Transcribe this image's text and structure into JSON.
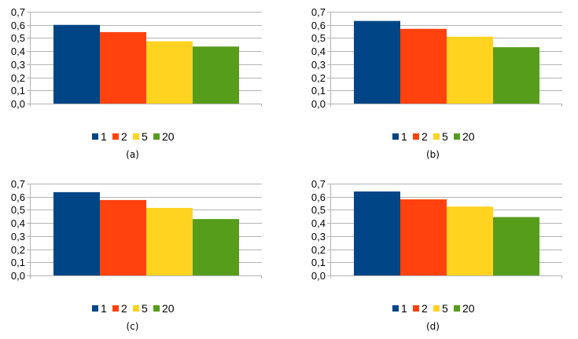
{
  "colors": {
    "series": [
      "#004586",
      "#ff420e",
      "#ffd320",
      "#579d1c"
    ],
    "grid": "#b3b3b3",
    "axis": "#b3b3b3"
  },
  "chart_data": [
    {
      "type": "bar",
      "caption": "(a)",
      "categories": [
        ""
      ],
      "series": [
        {
          "name": "1",
          "values": [
            0.6
          ]
        },
        {
          "name": "2",
          "values": [
            0.545
          ]
        },
        {
          "name": "5",
          "values": [
            0.475
          ]
        },
        {
          "name": "20",
          "values": [
            0.435
          ]
        }
      ],
      "ylim": [
        0,
        0.7
      ],
      "yticks": [
        "0,0",
        "0,1",
        "0,2",
        "0,3",
        "0,4",
        "0,5",
        "0,6",
        "0,7"
      ],
      "grid": true,
      "legend": "bottom"
    },
    {
      "type": "bar",
      "caption": "(b)",
      "categories": [
        ""
      ],
      "series": [
        {
          "name": "1",
          "values": [
            0.63
          ]
        },
        {
          "name": "2",
          "values": [
            0.57
          ]
        },
        {
          "name": "5",
          "values": [
            0.51
          ]
        },
        {
          "name": "20",
          "values": [
            0.43
          ]
        }
      ],
      "ylim": [
        0,
        0.7
      ],
      "yticks": [
        "0,0",
        "0,1",
        "0,2",
        "0,3",
        "0,4",
        "0,5",
        "0,6",
        "0,7"
      ],
      "grid": true,
      "legend": "bottom"
    },
    {
      "type": "bar",
      "caption": "(c)",
      "categories": [
        ""
      ],
      "series": [
        {
          "name": "1",
          "values": [
            0.635
          ]
        },
        {
          "name": "2",
          "values": [
            0.575
          ]
        },
        {
          "name": "5",
          "values": [
            0.515
          ]
        },
        {
          "name": "20",
          "values": [
            0.43
          ]
        }
      ],
      "ylim": [
        0,
        0.7
      ],
      "yticks": [
        "0,0",
        "0,1",
        "0,2",
        "0,3",
        "0,4",
        "0,5",
        "0,6",
        "0,7"
      ],
      "grid": true,
      "legend": "bottom"
    },
    {
      "type": "bar",
      "caption": "(d)",
      "categories": [
        ""
      ],
      "series": [
        {
          "name": "1",
          "values": [
            0.64
          ]
        },
        {
          "name": "2",
          "values": [
            0.58
          ]
        },
        {
          "name": "5",
          "values": [
            0.525
          ]
        },
        {
          "name": "20",
          "values": [
            0.445
          ]
        }
      ],
      "ylim": [
        0,
        0.7
      ],
      "yticks": [
        "0,0",
        "0,1",
        "0,2",
        "0,3",
        "0,4",
        "0,5",
        "0,6",
        "0,7"
      ],
      "grid": true,
      "legend": "bottom"
    }
  ]
}
